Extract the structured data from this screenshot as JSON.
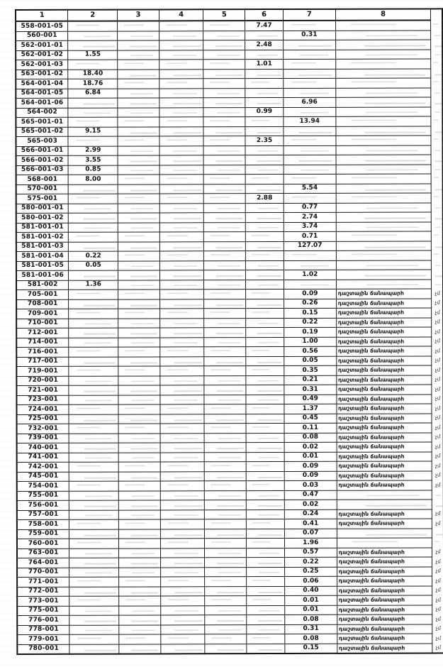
{
  "paper": {
    "background": "#ffffff",
    "ink": "#1c1c1c"
  },
  "table": {
    "headers": [
      "1",
      "2",
      "3",
      "4",
      "5",
      "6",
      "7",
      "8"
    ],
    "edge_fragment": "չմ",
    "road_label": "դաշտային ճանապարհ",
    "rows": [
      [
        "558-001-05",
        "",
        "",
        "",
        "",
        "7.47",
        "",
        ""
      ],
      [
        "560-001",
        "",
        "",
        "",
        "",
        "",
        "0.31",
        ""
      ],
      [
        "562-001-01",
        "",
        "",
        "",
        "",
        "2.48",
        "",
        ""
      ],
      [
        "562-001-02",
        "1.55",
        "",
        "",
        "",
        "",
        "",
        ""
      ],
      [
        "562-001-03",
        "",
        "",
        "",
        "",
        "1.01",
        "",
        ""
      ],
      [
        "563-001-02",
        "18.40",
        "",
        "",
        "",
        "",
        "",
        ""
      ],
      [
        "564-001-04",
        "18.76",
        "",
        "",
        "",
        "",
        "",
        ""
      ],
      [
        "564-001-05",
        "6.84",
        "",
        "",
        "",
        "",
        "",
        ""
      ],
      [
        "564-001-06",
        "",
        "",
        "",
        "",
        "",
        "6.96",
        ""
      ],
      [
        "564-002",
        "",
        "",
        "",
        "",
        "0.99",
        "",
        ""
      ],
      [
        "565-001-01",
        "",
        "",
        "",
        "",
        "",
        "13.94",
        ""
      ],
      [
        "565-001-02",
        "9.15",
        "",
        "",
        "",
        "",
        "",
        ""
      ],
      [
        "565-003",
        "",
        "",
        "",
        "",
        "2.35",
        "",
        ""
      ],
      [
        "566-001-01",
        "2.99",
        "",
        "",
        "",
        "",
        "",
        ""
      ],
      [
        "566-001-02",
        "3.55",
        "",
        "",
        "",
        "",
        "",
        ""
      ],
      [
        "566-001-03",
        "0.85",
        "",
        "",
        "",
        "",
        "",
        ""
      ],
      [
        "568-001",
        "8.00",
        "",
        "",
        "",
        "",
        "",
        ""
      ],
      [
        "570-001",
        "",
        "",
        "",
        "",
        "",
        "5.54",
        ""
      ],
      [
        "575-001",
        "",
        "",
        "",
        "",
        "2.88",
        "",
        ""
      ],
      [
        "580-001-01",
        "",
        "",
        "",
        "",
        "",
        "0.77",
        ""
      ],
      [
        "580-001-02",
        "",
        "",
        "",
        "",
        "",
        "2.74",
        ""
      ],
      [
        "581-001-01",
        "",
        "",
        "",
        "",
        "",
        "3.74",
        ""
      ],
      [
        "581-001-02",
        "",
        "",
        "",
        "",
        "",
        "0.71",
        ""
      ],
      [
        "581-001-03",
        "",
        "",
        "",
        "",
        "",
        "127.07",
        ""
      ],
      [
        "581-001-04",
        "0.22",
        "",
        "",
        "",
        "",
        "",
        ""
      ],
      [
        "581-001-05",
        "0.05",
        "",
        "",
        "",
        "",
        "",
        ""
      ],
      [
        "581-001-06",
        "",
        "",
        "",
        "",
        "",
        "1.02",
        ""
      ],
      [
        "581-002",
        "1.36",
        "",
        "",
        "",
        "",
        "",
        ""
      ],
      [
        "705-001",
        "",
        "",
        "",
        "",
        "",
        "0.09",
        "դաշտային ճանապարհ"
      ],
      [
        "708-001",
        "",
        "",
        "",
        "",
        "",
        "0.26",
        "դաշտային ճանապարհ"
      ],
      [
        "709-001",
        "",
        "",
        "",
        "",
        "",
        "0.15",
        "դաշտային ճանապարհ"
      ],
      [
        "710-001",
        "",
        "",
        "",
        "",
        "",
        "0.22",
        "դաշտային ճանապարհ"
      ],
      [
        "712-001",
        "",
        "",
        "",
        "",
        "",
        "0.19",
        "դաշտային ճանապարհ"
      ],
      [
        "714-001",
        "",
        "",
        "",
        "",
        "",
        "1.00",
        "դաշտային ճանապարհ"
      ],
      [
        "716-001",
        "",
        "",
        "",
        "",
        "",
        "0.56",
        "դաշտային ճանապարհ"
      ],
      [
        "717-001",
        "",
        "",
        "",
        "",
        "",
        "0.05",
        "դաշտային ճանապարհ"
      ],
      [
        "719-001",
        "",
        "",
        "",
        "",
        "",
        "0.35",
        "դաշտային ճանապարհ"
      ],
      [
        "720-001",
        "",
        "",
        "",
        "",
        "",
        "0.21",
        "դաշտային ճանապարհ"
      ],
      [
        "721-001",
        "",
        "",
        "",
        "",
        "",
        "0.31",
        "դաշտային ճանապարհ"
      ],
      [
        "723-001",
        "",
        "",
        "",
        "",
        "",
        "0.49",
        "դաշտային ճանապարհ"
      ],
      [
        "724-001",
        "",
        "",
        "",
        "",
        "",
        "1.37",
        "դաշտային ճանապարհ"
      ],
      [
        "725-001",
        "",
        "",
        "",
        "",
        "",
        "0.45",
        "դաշտային ճանապարհ"
      ],
      [
        "732-001",
        "",
        "",
        "",
        "",
        "",
        "0.11",
        "դաշտային ճանապարհ"
      ],
      [
        "739-001",
        "",
        "",
        "",
        "",
        "",
        "0.08",
        "դաշտային ճանապարհ"
      ],
      [
        "740-001",
        "",
        "",
        "",
        "",
        "",
        "0.02",
        "դաշտային ճանապարհ"
      ],
      [
        "741-001",
        "",
        "",
        "",
        "",
        "",
        "0.01",
        "դաշտային ճանապարհ"
      ],
      [
        "742-001",
        "",
        "",
        "",
        "",
        "",
        "0.09",
        "դաշտային ճանապարհ"
      ],
      [
        "745-001",
        "",
        "",
        "",
        "",
        "",
        "0.09",
        "դաշտային ճանապարհ"
      ],
      [
        "754-001",
        "",
        "",
        "",
        "",
        "",
        "0.03",
        "դաշտային ճանապարհ"
      ],
      [
        "755-001",
        "",
        "",
        "",
        "",
        "",
        "0.47",
        ""
      ],
      [
        "756-001",
        "",
        "",
        "",
        "",
        "",
        "0.02",
        ""
      ],
      [
        "757-001",
        "",
        "",
        "",
        "",
        "",
        "0.24",
        "դաշտային ճանապարհ"
      ],
      [
        "758-001",
        "",
        "",
        "",
        "",
        "",
        "0.41",
        "դաշտային ճանապարհ"
      ],
      [
        "759-001",
        "",
        "",
        "",
        "",
        "",
        "0.07",
        ""
      ],
      [
        "760-001",
        "",
        "",
        "",
        "",
        "",
        "1.96",
        ""
      ],
      [
        "763-001",
        "",
        "",
        "",
        "",
        "",
        "0.57",
        "դաշտային ճանապարհ"
      ],
      [
        "764-001",
        "",
        "",
        "",
        "",
        "",
        "0.22",
        "դաշտային ճանապարհ"
      ],
      [
        "770-001",
        "",
        "",
        "",
        "",
        "",
        "0.25",
        "դաշտային ճանապարհ"
      ],
      [
        "771-001",
        "",
        "",
        "",
        "",
        "",
        "0.06",
        "դաշտային ճանապարհ"
      ],
      [
        "772-001",
        "",
        "",
        "",
        "",
        "",
        "0.40",
        "դաշտային ճանապարհ"
      ],
      [
        "773-001",
        "",
        "",
        "",
        "",
        "",
        "0.01",
        "դաշտային ճանապարհ"
      ],
      [
        "775-001",
        "",
        "",
        "",
        "",
        "",
        "0.01",
        "դաշտային ճանապարհ"
      ],
      [
        "776-001",
        "",
        "",
        "",
        "",
        "",
        "0.08",
        "դաշտային ճանապարհ"
      ],
      [
        "778-001",
        "",
        "",
        "",
        "",
        "",
        "0.31",
        "դաշտային ճանապարհ"
      ],
      [
        "779-001",
        "",
        "",
        "",
        "",
        "",
        "0.08",
        "դաշտային ճանապարհ"
      ],
      [
        "780-001",
        "",
        "",
        "",
        "",
        "",
        "0.15",
        "դաշտային ճանապարհ"
      ]
    ]
  }
}
